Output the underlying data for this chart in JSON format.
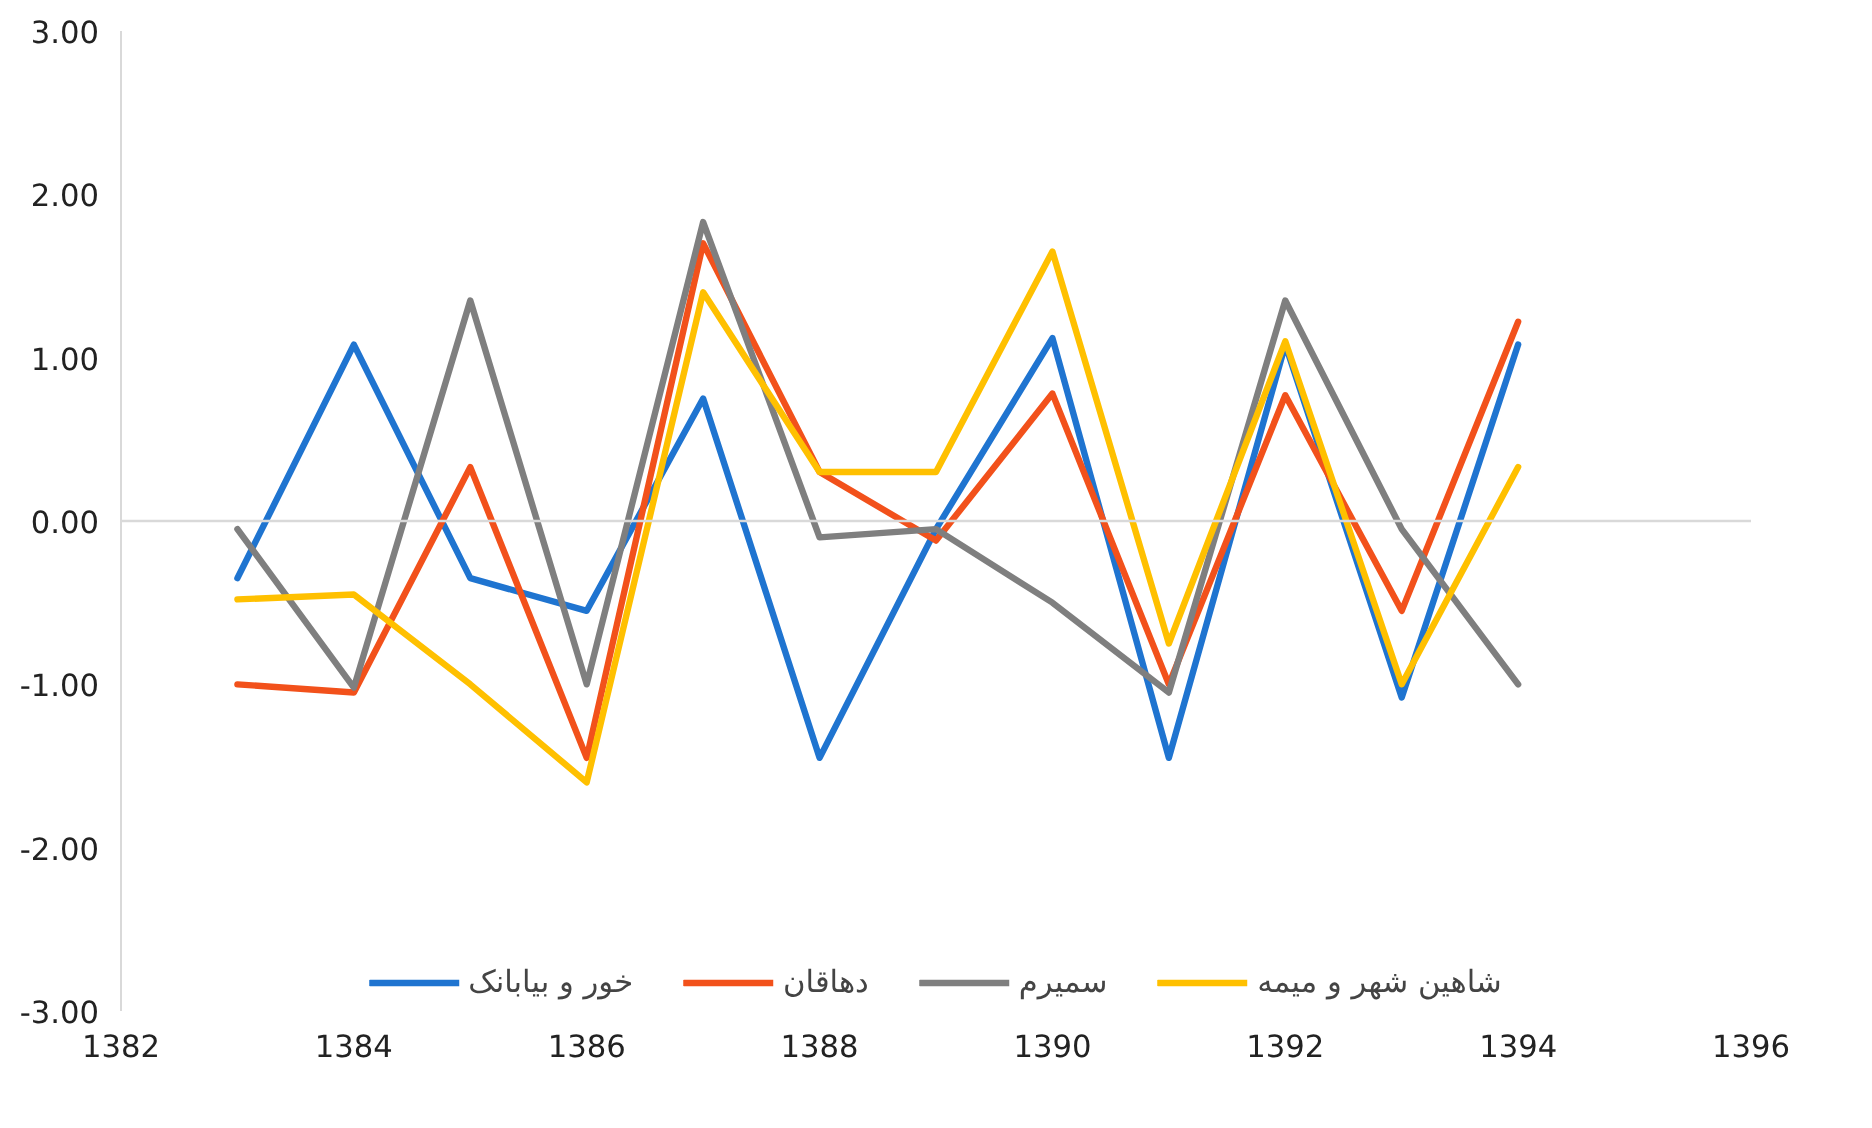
{
  "chart_data": {
    "type": "line",
    "x": [
      1383,
      1384,
      1385,
      1386,
      1387,
      1388,
      1389,
      1390,
      1391,
      1392,
      1393,
      1394
    ],
    "series": [
      {
        "name": "خور و بیابانک",
        "color": "#1f74d0",
        "values": [
          -0.35,
          1.08,
          -0.35,
          -0.55,
          0.75,
          -1.45,
          -0.05,
          1.12,
          -1.45,
          1.08,
          -1.08,
          1.08
        ]
      },
      {
        "name": "دهاقان",
        "color": "#f2511b",
        "values": [
          -1.0,
          -1.05,
          0.33,
          -1.45,
          1.7,
          0.3,
          -0.12,
          0.78,
          -1.0,
          0.77,
          -0.55,
          1.22
        ]
      },
      {
        "name": "سمیرم",
        "color": "#7f7f7f",
        "values": [
          -0.05,
          -1.02,
          1.35,
          -1.0,
          1.83,
          -0.1,
          -0.05,
          -0.5,
          -1.05,
          1.35,
          -0.05,
          -1.0
        ]
      },
      {
        "name": "شاهین شهر و میمه",
        "color": "#ffc000",
        "values": [
          -0.48,
          -0.45,
          -1.0,
          -1.6,
          1.4,
          0.3,
          0.3,
          1.65,
          -0.75,
          1.1,
          -1.0,
          0.33
        ]
      }
    ],
    "xlim": [
      1382,
      1396
    ],
    "xticks": [
      1382,
      1384,
      1386,
      1388,
      1390,
      1392,
      1394,
      1396
    ],
    "ylim": [
      -3,
      3
    ],
    "yticks": [
      {
        "value": -3,
        "label": "-3.00"
      },
      {
        "value": -2,
        "label": "-2.00"
      },
      {
        "value": -1,
        "label": "-1.00"
      },
      {
        "value": 0,
        "label": "0.00"
      },
      {
        "value": 1,
        "label": "1.00"
      },
      {
        "value": 2,
        "label": "2.00"
      },
      {
        "value": 3,
        "label": "3.00"
      }
    ],
    "ref_lines": [
      {
        "axis": "y",
        "value": 0,
        "color": "#d9d9d9"
      }
    ],
    "grid": false,
    "legend": "bottom",
    "marker": "none",
    "line_style": "solid"
  }
}
